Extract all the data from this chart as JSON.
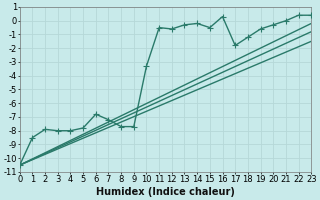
{
  "background_color": "#c8eaea",
  "grid_color": "#b5d8d8",
  "line_color": "#2a7a6a",
  "xlabel": "Humidex (Indice chaleur)",
  "ylim": [
    -11,
    1
  ],
  "xlim": [
    0,
    23
  ],
  "yticks": [
    1,
    0,
    -1,
    -2,
    -3,
    -4,
    -5,
    -6,
    -7,
    -8,
    -9,
    -10,
    -11
  ],
  "xticks": [
    0,
    1,
    2,
    3,
    4,
    5,
    6,
    7,
    8,
    9,
    10,
    11,
    12,
    13,
    14,
    15,
    16,
    17,
    18,
    19,
    20,
    21,
    22,
    23
  ],
  "lines": [
    {
      "x": [
        0,
        1,
        2,
        3,
        4,
        5,
        6,
        7,
        8,
        9,
        10,
        11,
        12,
        13,
        14,
        15,
        16,
        17,
        18,
        19,
        20,
        21,
        22,
        23
      ],
      "y": [
        -10.5,
        -8.5,
        -7.9,
        -8.0,
        -8.0,
        -7.8,
        -6.8,
        -7.2,
        -7.7,
        -7.7,
        -3.3,
        -0.5,
        -0.6,
        -0.3,
        -0.2,
        -0.5,
        0.3,
        -1.8,
        -1.2,
        -0.6,
        -0.3,
        0.0,
        0.4,
        0.4
      ],
      "marker": "+",
      "markersize": 4,
      "linewidth": 1.0,
      "zorder": 5
    },
    {
      "x": [
        0,
        23
      ],
      "y": [
        -10.5,
        -0.2
      ],
      "marker": null,
      "linewidth": 1.0,
      "zorder": 3
    },
    {
      "x": [
        0,
        23
      ],
      "y": [
        -10.5,
        -0.8
      ],
      "marker": null,
      "linewidth": 1.0,
      "zorder": 3
    },
    {
      "x": [
        0,
        23
      ],
      "y": [
        -10.5,
        -1.5
      ],
      "marker": null,
      "linewidth": 1.0,
      "zorder": 3
    }
  ],
  "fontsize_xlabel": 7,
  "tick_fontsize": 6,
  "linewidth": 1.0
}
